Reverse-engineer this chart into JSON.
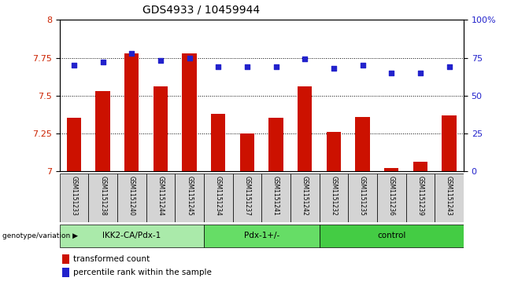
{
  "title": "GDS4933 / 10459944",
  "samples": [
    "GSM1151233",
    "GSM1151238",
    "GSM1151240",
    "GSM1151244",
    "GSM1151245",
    "GSM1151234",
    "GSM1151237",
    "GSM1151241",
    "GSM1151242",
    "GSM1151232",
    "GSM1151235",
    "GSM1151236",
    "GSM1151239",
    "GSM1151243"
  ],
  "transformed_counts": [
    7.35,
    7.53,
    7.78,
    7.56,
    7.78,
    7.38,
    7.25,
    7.35,
    7.56,
    7.26,
    7.36,
    7.02,
    7.06,
    7.37
  ],
  "percentile_ranks": [
    70,
    72,
    78,
    73,
    75,
    69,
    69,
    69,
    74,
    68,
    70,
    65,
    65,
    69
  ],
  "groups": [
    {
      "name": "IKK2-CA/Pdx-1",
      "start": 0,
      "end": 5,
      "color": "#aaeaaa"
    },
    {
      "name": "Pdx-1+/-",
      "start": 5,
      "end": 9,
      "color": "#66dd66"
    },
    {
      "name": "control",
      "start": 9,
      "end": 14,
      "color": "#44cc44"
    }
  ],
  "ylim_left": [
    7.0,
    8.0
  ],
  "ylim_right": [
    0,
    100
  ],
  "yticks_left": [
    7.0,
    7.25,
    7.5,
    7.75,
    8.0
  ],
  "yticks_right": [
    0,
    25,
    50,
    75,
    100
  ],
  "bar_color": "#cc1100",
  "dot_color": "#2222cc",
  "background_color": "#ffffff",
  "tick_label_color_left": "#cc2200",
  "tick_label_color_right": "#2222cc",
  "bar_width": 0.5,
  "legend_red_label": "transformed count",
  "legend_blue_label": "percentile rank within the sample",
  "genotype_label": "genotype/variation",
  "sample_box_bg": "#d4d4d4",
  "grid_lines": [
    7.25,
    7.5,
    7.75
  ]
}
